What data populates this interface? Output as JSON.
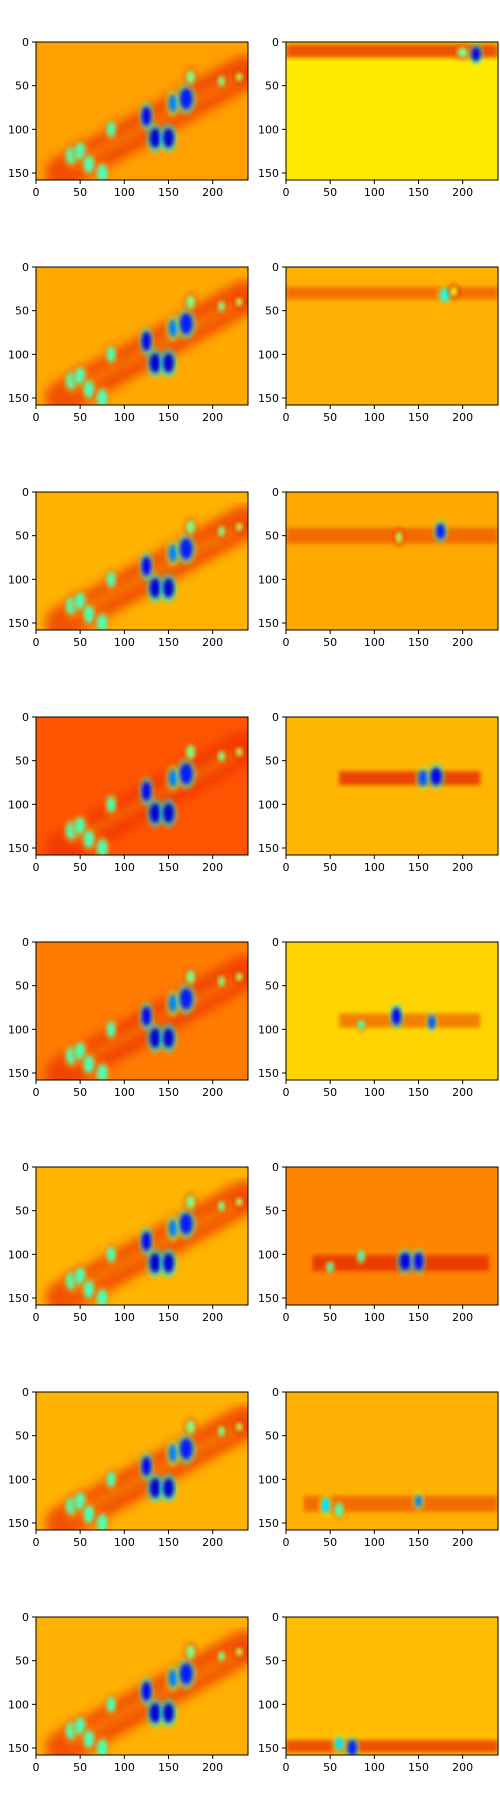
{
  "chart_data": {
    "type": "heatmap",
    "layout": {
      "rows": 8,
      "cols": 2
    },
    "image_extent": {
      "x": [
        0,
        240
      ],
      "y": [
        0,
        158
      ]
    },
    "x_ticks": [
      0,
      50,
      100,
      150,
      200
    ],
    "y_ticks": [
      0,
      50,
      100,
      150
    ],
    "colormap": "jet",
    "title": "",
    "xlabel": "",
    "ylabel": "",
    "left_panels_base": {
      "background": "#ffa000",
      "blobs": [
        [
          40,
          130,
          6,
          10,
          0.45
        ],
        [
          50,
          125,
          6,
          10,
          0.45
        ],
        [
          60,
          140,
          6,
          10,
          0.45
        ],
        [
          75,
          150,
          6,
          10,
          0.45
        ],
        [
          85,
          100,
          5,
          9,
          0.45
        ],
        [
          125,
          85,
          5,
          11,
          0.12
        ],
        [
          135,
          110,
          6,
          11,
          0.08
        ],
        [
          150,
          110,
          6,
          11,
          0.08
        ],
        [
          155,
          70,
          5,
          10,
          0.25
        ],
        [
          170,
          65,
          7,
          12,
          0.15
        ],
        [
          175,
          40,
          5,
          8,
          0.5
        ],
        [
          210,
          45,
          4,
          6,
          0.5
        ],
        [
          230,
          40,
          4,
          5,
          0.55
        ]
      ],
      "band_from": [
        30,
        150
      ],
      "band_to": [
        235,
        35
      ],
      "band_color": "#ee3300"
    },
    "panels": [
      {
        "row": 0,
        "left": {
          "background": "#ffa000"
        },
        "right": {
          "background": "#ffea00",
          "band": {
            "y": 10,
            "height": 16,
            "x0": 0,
            "x1": 240,
            "color": "#e83a00"
          },
          "blobs": [
            [
              215,
              14,
              5,
              8,
              0.1
            ],
            [
              200,
              12,
              6,
              6,
              0.5
            ]
          ]
        }
      },
      {
        "row": 1,
        "left": {
          "background": "#ffa800"
        },
        "right": {
          "background": "#ffb000",
          "band": {
            "y": 30,
            "height": 14,
            "x0": 0,
            "x1": 240,
            "color": "#f06400"
          },
          "blobs": [
            [
              180,
              32,
              6,
              8,
              0.4
            ],
            [
              190,
              28,
              4,
              6,
              0.6
            ]
          ]
        }
      },
      {
        "row": 2,
        "left": {
          "background": "#ffb200"
        },
        "right": {
          "background": "#ffa800",
          "band": {
            "y": 50,
            "height": 18,
            "x0": 0,
            "x1": 240,
            "color": "#f06000"
          },
          "blobs": [
            [
              128,
              52,
              4,
              7,
              0.55
            ],
            [
              175,
              45,
              5,
              9,
              0.15
            ]
          ]
        }
      },
      {
        "row": 3,
        "left": {
          "background": "#ff5400"
        },
        "right": {
          "background": "#ffb600",
          "band": {
            "y": 70,
            "height": 16,
            "x0": 60,
            "x1": 220,
            "color": "#e63000"
          },
          "blobs": [
            [
              155,
              70,
              5,
              9,
              0.2
            ],
            [
              170,
              68,
              6,
              10,
              0.12
            ]
          ]
        }
      },
      {
        "row": 4,
        "left": {
          "background": "#ff7c00"
        },
        "right": {
          "background": "#ffd400",
          "band": {
            "y": 90,
            "height": 16,
            "x0": 60,
            "x1": 220,
            "color": "#f07000"
          },
          "blobs": [
            [
              85,
              95,
              4,
              6,
              0.45
            ],
            [
              125,
              85,
              5,
              10,
              0.12
            ],
            [
              165,
              92,
              4,
              8,
              0.2
            ]
          ]
        }
      },
      {
        "row": 5,
        "left": {
          "background": "#ffb400"
        },
        "right": {
          "background": "#ff8400",
          "band": {
            "y": 110,
            "height": 18,
            "x0": 30,
            "x1": 230,
            "color": "#e62e00"
          },
          "blobs": [
            [
              50,
              115,
              4,
              6,
              0.45
            ],
            [
              85,
              102,
              4,
              7,
              0.45
            ],
            [
              135,
              108,
              6,
              10,
              0.1
            ],
            [
              150,
              108,
              5,
              10,
              0.12
            ]
          ]
        }
      },
      {
        "row": 6,
        "left": {
          "background": "#ffb200"
        },
        "right": {
          "background": "#ffb000",
          "band": {
            "y": 128,
            "height": 18,
            "x0": 20,
            "x1": 240,
            "color": "#f06000"
          },
          "blobs": [
            [
              45,
              130,
              5,
              9,
              0.35
            ],
            [
              60,
              135,
              5,
              8,
              0.45
            ],
            [
              150,
              125,
              4,
              7,
              0.25
            ]
          ]
        }
      },
      {
        "row": 7,
        "left": {
          "background": "#ffb000"
        },
        "right": {
          "background": "#ffbc00",
          "band": {
            "y": 148,
            "height": 14,
            "x0": 0,
            "x1": 240,
            "color": "#ea3e00"
          },
          "blobs": [
            [
              60,
              145,
              5,
              8,
              0.35
            ],
            [
              75,
              150,
              5,
              9,
              0.15
            ]
          ]
        }
      }
    ]
  }
}
